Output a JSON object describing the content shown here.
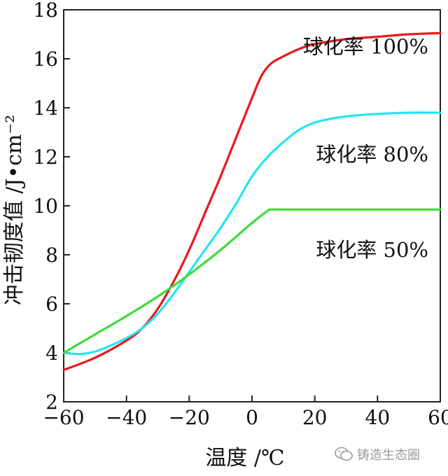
{
  "chart_data": {
    "type": "line",
    "title": "",
    "xlabel": "温度 /℃",
    "ylabel": "冲击韧度值 /J•cm⁻²",
    "xlim": [
      -60,
      60
    ],
    "ylim": [
      2,
      18
    ],
    "xticks": [
      -60,
      -40,
      -20,
      0,
      20,
      40,
      60
    ],
    "yticks": [
      2,
      4,
      6,
      8,
      10,
      12,
      14,
      16,
      18
    ],
    "grid": false,
    "series": [
      {
        "name": "球化率 100%",
        "color": "#e8181c",
        "x": [
          -60,
          -50,
          -40,
          -35,
          -30,
          -25,
          -20,
          -15,
          -10,
          -5,
          0,
          3,
          6,
          10,
          15,
          20,
          30,
          40,
          50,
          60
        ],
        "y": [
          3.3,
          3.8,
          4.5,
          5.0,
          5.8,
          6.9,
          8.2,
          9.7,
          11.2,
          12.8,
          14.4,
          15.3,
          15.8,
          16.1,
          16.4,
          16.6,
          16.8,
          16.9,
          17.0,
          17.05
        ]
      },
      {
        "name": "球化率 80%",
        "color": "#22e6f2",
        "x": [
          -60,
          -55,
          -50,
          -45,
          -40,
          -35,
          -30,
          -25,
          -20,
          -15,
          -10,
          -5,
          0,
          5,
          10,
          15,
          20,
          25,
          30,
          40,
          50,
          60
        ],
        "y": [
          4.0,
          3.95,
          4.05,
          4.3,
          4.6,
          5.0,
          5.6,
          6.4,
          7.3,
          8.2,
          9.1,
          10.1,
          11.2,
          12.0,
          12.6,
          13.1,
          13.4,
          13.55,
          13.65,
          13.75,
          13.8,
          13.8
        ]
      },
      {
        "name": "球化率 50%",
        "color": "#3cdc3c",
        "x": [
          -60,
          -50,
          -40,
          -30,
          -20,
          -10,
          0,
          5,
          6,
          10,
          20,
          40,
          60
        ],
        "y": [
          4.0,
          4.75,
          5.5,
          6.3,
          7.2,
          8.2,
          9.3,
          9.8,
          9.85,
          9.85,
          9.85,
          9.85,
          9.85
        ]
      }
    ],
    "annotations": [
      "球化率 100%",
      "球化率 80%",
      "球化率 50%"
    ]
  },
  "watermark": {
    "text": "铸造生态圈",
    "icon": "wechat-icon"
  }
}
